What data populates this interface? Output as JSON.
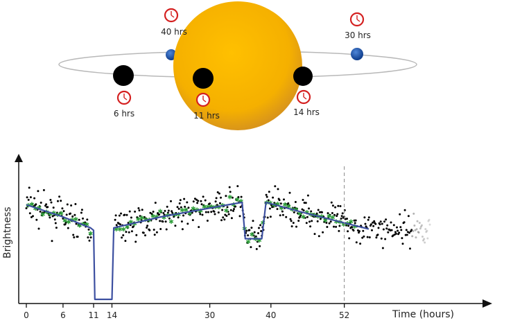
{
  "orbit_diagram": {
    "star_color": "#f5b400",
    "transiting_planet_color": "#000000",
    "occulted_planet_color": "#1a4fa0",
    "clock_color": "#d42020",
    "time_labels": {
      "pre_transit": "6 hrs",
      "mid_transit": "11 hrs",
      "egress": "14 hrs",
      "quadrature_right": "30 hrs",
      "occultation": "40 hrs"
    }
  },
  "chart_data": {
    "type": "line",
    "title": "",
    "xlabel": "Time (hours)",
    "ylabel": "Brightness",
    "xlim": [
      0,
      57
    ],
    "ylim": [
      0,
      1
    ],
    "ticks": [
      {
        "value": 0,
        "label": "0"
      },
      {
        "value": 6,
        "label": "6"
      },
      {
        "value": 11,
        "label": "11"
      },
      {
        "value": 14,
        "label": "14"
      },
      {
        "value": 30,
        "label": "30"
      },
      {
        "value": 40,
        "label": "40"
      },
      {
        "value": 52,
        "label": "52"
      }
    ],
    "dashed_marker_x": 52,
    "model_curve": {
      "color": "#3c4fa0",
      "x": [
        0,
        6,
        10.5,
        11,
        11.2,
        14,
        14.3,
        22,
        33,
        35.3,
        35.8,
        38.5,
        39.2,
        45,
        56
      ],
      "y": [
        0.78,
        0.68,
        0.59,
        0.57,
        0.0,
        0.0,
        0.59,
        0.68,
        0.78,
        0.8,
        0.5,
        0.5,
        0.8,
        0.72,
        0.58
      ]
    },
    "binned_points_color": "#2e9e3a",
    "raw_points_color": "#000000"
  }
}
